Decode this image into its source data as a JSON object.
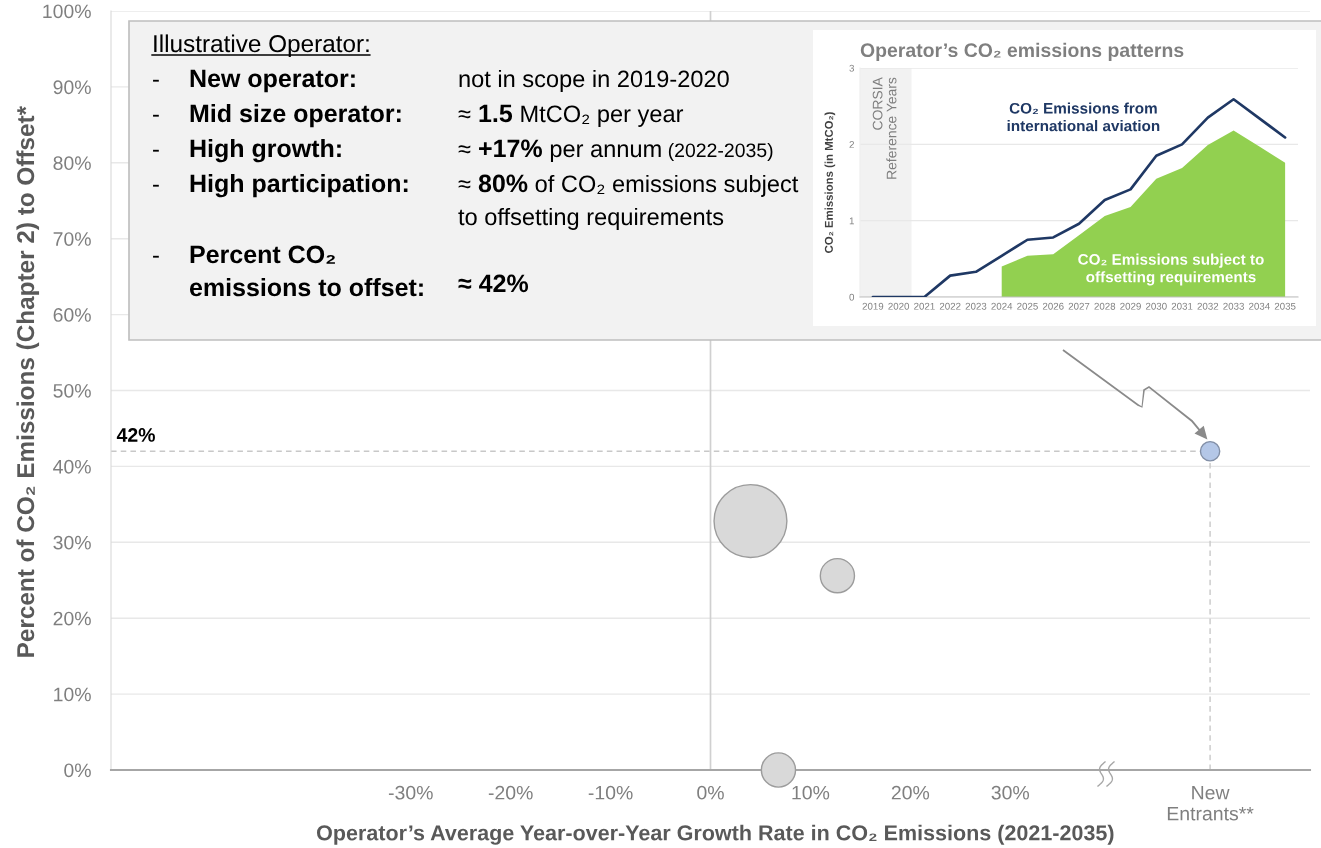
{
  "chart_data": [
    {
      "type": "bubble",
      "xlabel": "Operator’s Average Year-over-Year Growth Rate in CO₂ Emissions (2021-2035)",
      "ylabel": "Percent of CO₂ Emissions (Chapter 2) to Offset*",
      "x": [
        4,
        12.7,
        6.8,
        50
      ],
      "values": [
        32.8,
        25.6,
        0,
        42
      ],
      "sizes": [
        1,
        0.22,
        0.22,
        0.07
      ],
      "colors": [
        "#d9d9d9",
        "#d9d9d9",
        "#d9d9d9",
        "#b4c7e7"
      ],
      "xlim": [
        -60,
        60
      ],
      "xticks": [
        {
          "value": -30,
          "label": "-30%"
        },
        {
          "value": -20,
          "label": "-20%"
        },
        {
          "value": -10,
          "label": "-10%"
        },
        {
          "value": 0,
          "label": "0%"
        },
        {
          "value": 10,
          "label": "10%"
        },
        {
          "value": 20,
          "label": "20%"
        },
        {
          "value": 30,
          "label": "30%"
        },
        {
          "value": 50,
          "label": "New\nEntrants**"
        }
      ],
      "ylim": [
        0,
        100
      ],
      "yticks": [
        {
          "value": 0,
          "label": "0%"
        },
        {
          "value": 10,
          "label": "10%"
        },
        {
          "value": 20,
          "label": "20%"
        },
        {
          "value": 30,
          "label": "30%"
        },
        {
          "value": 40,
          "label": "40%"
        },
        {
          "value": 50,
          "label": "50%"
        },
        {
          "value": 60,
          "label": "60%"
        },
        {
          "value": 70,
          "label": "70%"
        },
        {
          "value": 80,
          "label": "80%"
        },
        {
          "value": 90,
          "label": "90%"
        },
        {
          "value": 100,
          "label": "100%"
        }
      ],
      "grid": "y",
      "ref_lines": [
        {
          "axis": "x",
          "value": 0,
          "color": "#d0d0d0"
        },
        {
          "axis": "y",
          "value": 42,
          "label": "42%",
          "line_style": "dashed",
          "color": "#c8c8c8"
        },
        {
          "axis": "x",
          "value": 50,
          "line_style": "dashed",
          "color": "#c8c8c8"
        }
      ]
    },
    {
      "type": "other",
      "annotations": [
        "Illustrative Operator:",
        "-",
        "New operator:",
        "not in scope in 2019-2020",
        "-",
        "Mid size operator:",
        "≈",
        "1.5",
        "MtCO₂ per year",
        "-",
        "High growth:",
        "≈",
        "+17%",
        "per annum",
        "(2022-2035)",
        "-",
        "High participation:",
        "≈",
        "80%",
        "of CO₂ emissions subject",
        "to offsetting requirements",
        "-",
        "Percent CO₂",
        "emissions to offset:",
        "≈ 42%"
      ]
    },
    {
      "type": "line",
      "title": "Operator’s CO₂ emissions patterns",
      "ylabel": "CO₂ Emissions (in MtCO₂)",
      "categories": [
        "2019",
        "2020",
        "2021",
        "2022",
        "2023",
        "2024",
        "2025",
        "2026",
        "2027",
        "2028",
        "2029",
        "2030",
        "2031",
        "2032",
        "2033",
        "2034",
        "2035"
      ],
      "series": [
        {
          "name": "CO₂ Emissions from\ninternational aviation",
          "color": "#1f3864",
          "values": [
            0,
            0,
            0,
            0.28,
            0.33,
            0.54,
            0.75,
            0.78,
            0.96,
            1.27,
            1.41,
            1.85,
            2.0,
            2.35,
            2.59,
            2.34,
            2.09
          ]
        },
        {
          "name": "CO₂ Emissions subject to\noffsetting requirements",
          "type": "area",
          "color": "#92d050",
          "values": [
            null,
            null,
            null,
            null,
            null,
            0.4,
            0.54,
            0.56,
            0.81,
            1.06,
            1.18,
            1.55,
            1.69,
            1.99,
            2.18,
            1.97,
            1.76
          ]
        }
      ],
      "ylim": [
        0,
        3
      ],
      "yticks": [
        0,
        1,
        2,
        3
      ],
      "grid": "y",
      "bands": [
        {
          "axis": "x",
          "from": "2019",
          "to": "2020",
          "label": "CORSIA\nReference Years",
          "color": "#f2f2f2"
        }
      ]
    }
  ]
}
